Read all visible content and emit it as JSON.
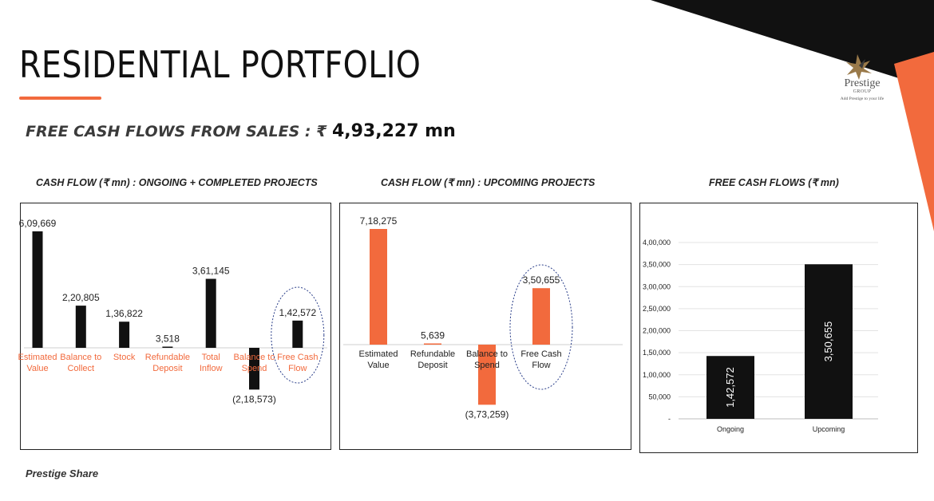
{
  "page": {
    "title": "RESIDENTIAL PORTFOLIO",
    "subtitle_prefix": "FREE CASH FLOWS FROM SALES : ₹ ",
    "subtitle_amount": "4,93,227 mn",
    "footer": "Prestige Share",
    "accent_color": "#f26a3d",
    "dark_color": "#111111"
  },
  "logo": {
    "name": "Prestige",
    "group": "GROUP",
    "tagline": "Add Prestige to your life"
  },
  "chart_data": [
    {
      "type": "bar",
      "title": "CASH FLOW (₹ mn) : ONGOING + COMPLETED PROJECTS",
      "categories": [
        "Estimated Value",
        "Balance to Collect",
        "Stock",
        "Refundable Deposit",
        "Total Inflow",
        "Balance to Spend",
        "Free Cash Flow"
      ],
      "values": [
        609669,
        220805,
        136822,
        3518,
        361145,
        -218573,
        142572
      ],
      "data_labels": [
        "6,09,669",
        "2,20,805",
        "1,36,822",
        "3,518",
        "3,61,145",
        "(2,18,573)",
        "1,42,572"
      ],
      "bar_color": "#111111",
      "label_color": "#f26a3d",
      "highlight": "Free Cash Flow"
    },
    {
      "type": "bar",
      "title": "CASH FLOW (₹ mn) : UPCOMING  PROJECTS",
      "categories": [
        "Estimated Value",
        "Refundable Deposit",
        "Balance to Spend",
        "Free Cash Flow"
      ],
      "values": [
        718275,
        5639,
        -373259,
        350655
      ],
      "data_labels": [
        "7,18,275",
        "5,639",
        "(3,73,259)",
        "3,50,655"
      ],
      "bar_color": "#f26a3d",
      "label_color": "#222222",
      "highlight": "Free Cash Flow"
    },
    {
      "type": "bar",
      "title": "FREE CASH FLOWS (₹ mn)",
      "categories": [
        "Ongoing",
        "Upcoming"
      ],
      "values": [
        142572,
        350655
      ],
      "data_labels": [
        "1,42,572",
        "3,50,655"
      ],
      "ylim": [
        0,
        400000
      ],
      "yticks": [
        0,
        50000,
        100000,
        150000,
        200000,
        250000,
        300000,
        350000,
        400000
      ],
      "ytick_labels": [
        "-",
        "50,000",
        "1,00,000",
        "1,50,000",
        "2,00,000",
        "2,50,000",
        "3,00,000",
        "3,50,000",
        "4,00,000"
      ],
      "grid": true,
      "bar_color": "#111111"
    }
  ]
}
